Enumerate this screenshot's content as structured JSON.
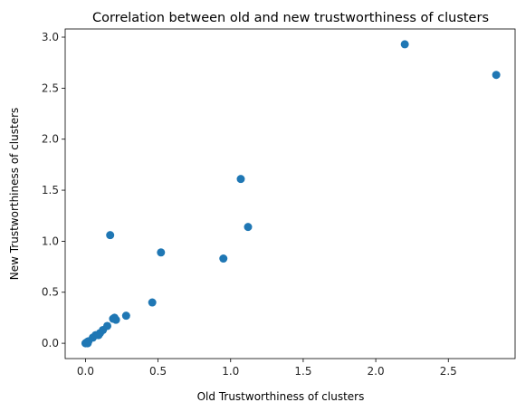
{
  "chart_data": {
    "type": "scatter",
    "title": "Correlation between old and new trustworthiness of clusters",
    "xlabel": "Old Trustworthiness of clusters",
    "ylabel": "New Trustworthiness of clusters",
    "xlim": [
      -0.14,
      2.96
    ],
    "ylim": [
      -0.15,
      3.08
    ],
    "xticks": [
      0.0,
      0.5,
      1.0,
      1.5,
      2.0,
      2.5
    ],
    "xtick_labels": [
      "0.0",
      "0.5",
      "1.0",
      "1.5",
      "2.0",
      "2.5"
    ],
    "yticks": [
      0.0,
      0.5,
      1.0,
      1.5,
      2.0,
      2.5,
      3.0
    ],
    "ytick_labels": [
      "0.0",
      "0.5",
      "1.0",
      "1.5",
      "2.0",
      "2.5",
      "3.0"
    ],
    "grid": false,
    "marker_color": "#1f77b4",
    "points": [
      {
        "x": 0.0,
        "y": 0.0
      },
      {
        "x": 0.005,
        "y": 0.005
      },
      {
        "x": 0.01,
        "y": 0.01
      },
      {
        "x": 0.015,
        "y": 0.0
      },
      {
        "x": 0.02,
        "y": 0.02
      },
      {
        "x": 0.05,
        "y": 0.055
      },
      {
        "x": 0.07,
        "y": 0.08
      },
      {
        "x": 0.09,
        "y": 0.08
      },
      {
        "x": 0.1,
        "y": 0.1
      },
      {
        "x": 0.12,
        "y": 0.13
      },
      {
        "x": 0.15,
        "y": 0.17
      },
      {
        "x": 0.19,
        "y": 0.24
      },
      {
        "x": 0.2,
        "y": 0.25
      },
      {
        "x": 0.21,
        "y": 0.23
      },
      {
        "x": 0.28,
        "y": 0.27
      },
      {
        "x": 0.46,
        "y": 0.4
      },
      {
        "x": 0.17,
        "y": 1.06
      },
      {
        "x": 0.52,
        "y": 0.89
      },
      {
        "x": 0.95,
        "y": 0.83
      },
      {
        "x": 1.07,
        "y": 1.61
      },
      {
        "x": 1.12,
        "y": 1.14
      },
      {
        "x": 2.2,
        "y": 2.93
      },
      {
        "x": 2.83,
        "y": 2.63
      }
    ]
  }
}
